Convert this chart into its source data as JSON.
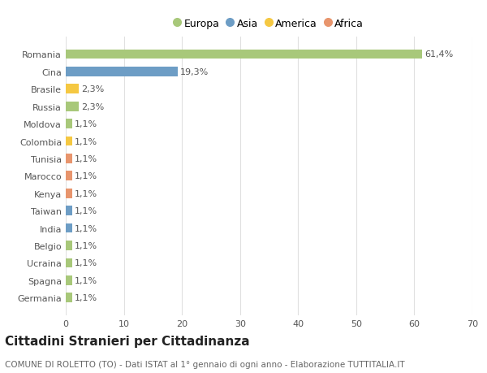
{
  "countries": [
    "Romania",
    "Cina",
    "Brasile",
    "Russia",
    "Moldova",
    "Colombia",
    "Tunisia",
    "Marocco",
    "Kenya",
    "Taiwan",
    "India",
    "Belgio",
    "Ucraina",
    "Spagna",
    "Germania"
  ],
  "values": [
    61.4,
    19.3,
    2.3,
    2.3,
    1.1,
    1.1,
    1.1,
    1.1,
    1.1,
    1.1,
    1.1,
    1.1,
    1.1,
    1.1,
    1.1
  ],
  "labels": [
    "61,4%",
    "19,3%",
    "2,3%",
    "2,3%",
    "1,1%",
    "1,1%",
    "1,1%",
    "1,1%",
    "1,1%",
    "1,1%",
    "1,1%",
    "1,1%",
    "1,1%",
    "1,1%",
    "1,1%"
  ],
  "colors": [
    "#a8c87a",
    "#6d9dc5",
    "#f5c842",
    "#a8c87a",
    "#a8c87a",
    "#f5c842",
    "#e8956d",
    "#e8956d",
    "#e8956d",
    "#6d9dc5",
    "#6d9dc5",
    "#a8c87a",
    "#a8c87a",
    "#a8c87a",
    "#a8c87a"
  ],
  "legend_labels": [
    "Europa",
    "Asia",
    "America",
    "Africa"
  ],
  "legend_colors": [
    "#a8c87a",
    "#6d9dc5",
    "#f5c842",
    "#e8956d"
  ],
  "title": "Cittadini Stranieri per Cittadinanza",
  "subtitle": "COMUNE DI ROLETTO (TO) - Dati ISTAT al 1° gennaio di ogni anno - Elaborazione TUTTITALIA.IT",
  "xlim": [
    0,
    70
  ],
  "xticks": [
    0,
    10,
    20,
    30,
    40,
    50,
    60,
    70
  ],
  "background_color": "#ffffff",
  "plot_bg_color": "#ffffff",
  "bar_height": 0.55,
  "grid_color": "#e0e0e0",
  "title_fontsize": 11,
  "subtitle_fontsize": 7.5,
  "label_fontsize": 8,
  "tick_fontsize": 8,
  "legend_fontsize": 9
}
